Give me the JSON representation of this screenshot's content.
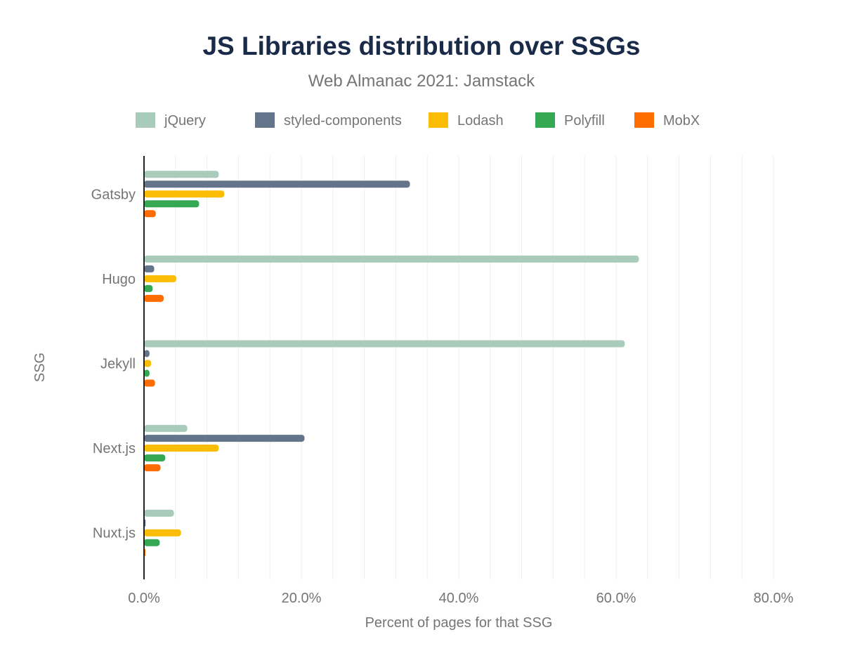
{
  "chart_data": {
    "type": "bar",
    "orientation": "horizontal",
    "title": "JS Libraries distribution over SSGs",
    "subtitle": "Web Almanac 2021: Jamstack",
    "xlabel": "Percent of pages for that SSG",
    "ylabel": "SSG",
    "xlim": [
      0,
      80
    ],
    "x_ticks": [
      "0.0%",
      "20.0%",
      "40.0%",
      "60.0%",
      "80.0%"
    ],
    "grid": true,
    "legend_position": "top",
    "categories": [
      "Gatsby",
      "Hugo",
      "Jekyll",
      "Next.js",
      "Nuxt.js"
    ],
    "series": [
      {
        "name": "jQuery",
        "color": "#a8cbbb",
        "values": [
          9.5,
          62.9,
          61.1,
          5.5,
          3.8
        ]
      },
      {
        "name": "styled-components",
        "color": "#64748b",
        "values": [
          33.8,
          1.3,
          0.7,
          20.4,
          0.2
        ]
      },
      {
        "name": "Lodash",
        "color": "#fbbc04",
        "values": [
          10.2,
          4.1,
          0.9,
          9.5,
          4.7
        ]
      },
      {
        "name": "Polyfill",
        "color": "#34a853",
        "values": [
          7.0,
          1.1,
          0.7,
          2.7,
          2.0
        ]
      },
      {
        "name": "MobX",
        "color": "#ff6d01",
        "values": [
          1.5,
          2.5,
          1.4,
          2.1,
          0.1
        ]
      }
    ]
  }
}
